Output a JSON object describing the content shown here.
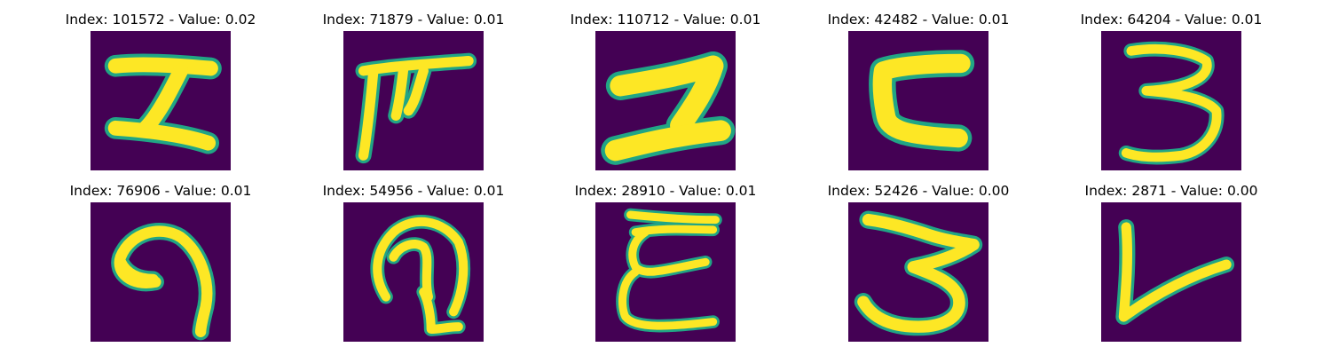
{
  "colors": {
    "background": "#440154",
    "stroke": "#fde725",
    "edge": "#21a585",
    "page": "#ffffff"
  },
  "panels": [
    {
      "title": "Index: 101572 - Value: 0.02",
      "glyph": "glyph-block-i"
    },
    {
      "title": "Index: 71879 - Value: 0.01",
      "glyph": "glyph-hooked-t"
    },
    {
      "title": "Index: 110712 - Value: 0.01",
      "glyph": "glyph-z-shape"
    },
    {
      "title": "Index: 42482 - Value: 0.01",
      "glyph": "glyph-reversed-c"
    },
    {
      "title": "Index: 64204 - Value: 0.01",
      "glyph": "glyph-three"
    },
    {
      "title": "Index: 76906 - Value: 0.01",
      "glyph": "glyph-nine-curl"
    },
    {
      "title": "Index: 54956 - Value: 0.01",
      "glyph": "glyph-hook-arc"
    },
    {
      "title": "Index: 28910 - Value: 0.01",
      "glyph": "glyph-epsilon"
    },
    {
      "title": "Index: 52426 - Value: 0.00",
      "glyph": "glyph-three-wide"
    },
    {
      "title": "Index: 2871 - Value: 0.00",
      "glyph": "glyph-v-check"
    }
  ]
}
